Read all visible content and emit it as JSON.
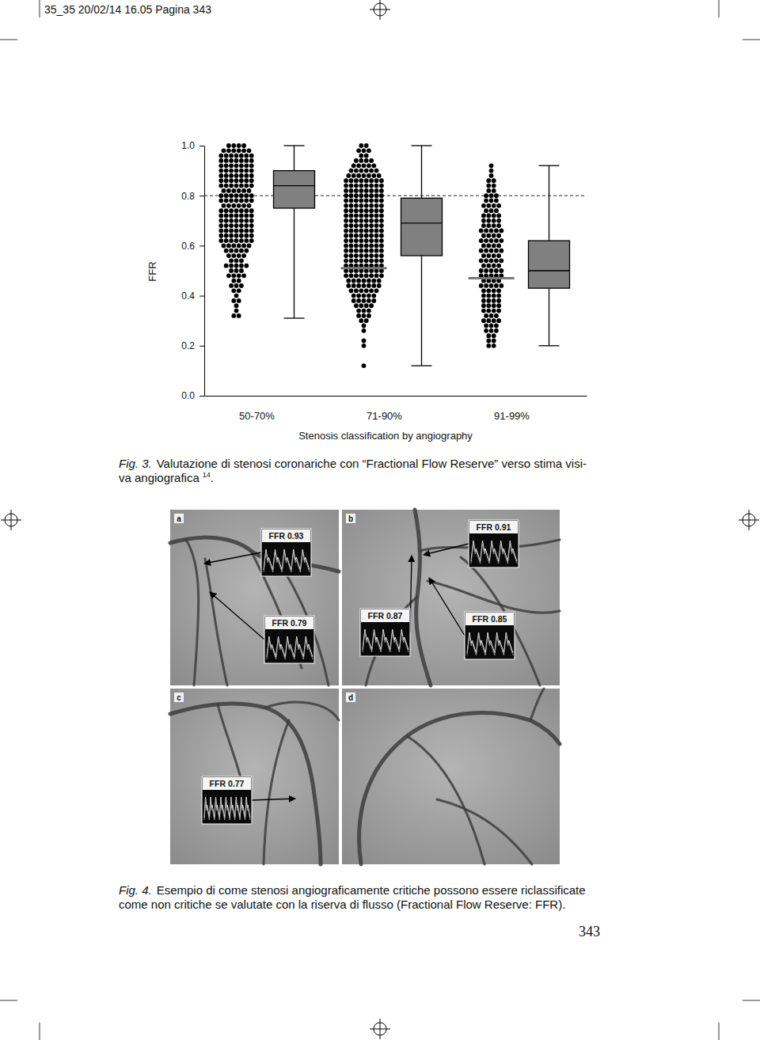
{
  "header": "35_35 20/02/14 16.05 Pagina 343",
  "chart_data": {
    "type": "box",
    "y_label": "FFR",
    "x_label": "Stenosis classification by angiography",
    "categories": [
      "50-70%",
      "71-90%",
      "91-99%"
    ],
    "ylim": [
      0,
      1
    ],
    "yticks": [
      {
        "value": 0,
        "label": "0.0"
      },
      0.2,
      0.4,
      0.6,
      0.8,
      {
        "value": 1,
        "label": "1.0"
      }
    ],
    "points": [
      [
        1,
        1,
        1,
        1,
        0.98,
        0.98,
        0.98,
        0.98,
        0.98,
        0.98,
        0.96,
        0.96,
        0.96,
        0.96,
        0.96,
        0.96,
        0.96,
        0.94,
        0.94,
        0.94,
        0.94,
        0.94,
        0.94,
        0.94,
        0.92,
        0.92,
        0.92,
        0.92,
        0.92,
        0.92,
        0.92,
        0.9,
        0.9,
        0.9,
        0.9,
        0.9,
        0.9,
        0.9,
        0.88,
        0.88,
        0.88,
        0.88,
        0.88,
        0.88,
        0.88,
        0.86,
        0.86,
        0.86,
        0.86,
        0.86,
        0.86,
        0.86,
        0.84,
        0.84,
        0.84,
        0.84,
        0.84,
        0.84,
        0.84,
        0.82,
        0.82,
        0.82,
        0.82,
        0.82,
        0.82,
        0.8,
        0.8,
        0.8,
        0.8,
        0.8,
        0.8,
        0.8,
        0.78,
        0.78,
        0.78,
        0.78,
        0.78,
        0.78,
        0.78,
        0.76,
        0.76,
        0.76,
        0.76,
        0.76,
        0.76,
        0.74,
        0.74,
        0.74,
        0.74,
        0.74,
        0.74,
        0.74,
        0.72,
        0.72,
        0.72,
        0.72,
        0.72,
        0.72,
        0.72,
        0.7,
        0.7,
        0.7,
        0.7,
        0.7,
        0.7,
        0.7,
        0.68,
        0.68,
        0.68,
        0.68,
        0.68,
        0.68,
        0.68,
        0.66,
        0.66,
        0.66,
        0.66,
        0.66,
        0.66,
        0.66,
        0.64,
        0.64,
        0.64,
        0.64,
        0.64,
        0.64,
        0.64,
        0.62,
        0.62,
        0.62,
        0.62,
        0.62,
        0.62,
        0.62,
        0.6,
        0.6,
        0.6,
        0.6,
        0.6,
        0.6,
        0.58,
        0.58,
        0.58,
        0.58,
        0.58,
        0.56,
        0.56,
        0.56,
        0.56,
        0.54,
        0.54,
        0.54,
        0.52,
        0.52,
        0.52,
        0.52,
        0.52,
        0.5,
        0.5,
        0.5,
        0.48,
        0.48,
        0.48,
        0.48,
        0.46,
        0.46,
        0.44,
        0.44,
        0.44,
        0.42,
        0.42,
        0.4,
        0.38,
        0.38,
        0.36,
        0.34,
        0.32,
        0.32
      ],
      [
        1,
        1,
        0.98,
        0.98,
        0.98,
        0.96,
        0.96,
        0.94,
        0.94,
        0.94,
        0.94,
        0.92,
        0.92,
        0.92,
        0.92,
        0.92,
        0.9,
        0.9,
        0.9,
        0.9,
        0.9,
        0.9,
        0.88,
        0.88,
        0.88,
        0.88,
        0.88,
        0.88,
        0.88,
        0.86,
        0.86,
        0.86,
        0.86,
        0.86,
        0.86,
        0.86,
        0.86,
        0.84,
        0.84,
        0.84,
        0.84,
        0.84,
        0.84,
        0.84,
        0.84,
        0.82,
        0.82,
        0.82,
        0.82,
        0.82,
        0.82,
        0.82,
        0.82,
        0.8,
        0.8,
        0.8,
        0.8,
        0.8,
        0.8,
        0.8,
        0.8,
        0.78,
        0.78,
        0.78,
        0.78,
        0.78,
        0.78,
        0.78,
        0.78,
        0.76,
        0.76,
        0.76,
        0.76,
        0.76,
        0.76,
        0.76,
        0.76,
        0.74,
        0.74,
        0.74,
        0.74,
        0.74,
        0.74,
        0.74,
        0.74,
        0.72,
        0.72,
        0.72,
        0.72,
        0.72,
        0.72,
        0.72,
        0.72,
        0.7,
        0.7,
        0.7,
        0.7,
        0.7,
        0.7,
        0.7,
        0.7,
        0.68,
        0.68,
        0.68,
        0.68,
        0.68,
        0.68,
        0.68,
        0.68,
        0.66,
        0.66,
        0.66,
        0.66,
        0.66,
        0.66,
        0.66,
        0.66,
        0.64,
        0.64,
        0.64,
        0.64,
        0.64,
        0.64,
        0.64,
        0.64,
        0.62,
        0.62,
        0.62,
        0.62,
        0.62,
        0.62,
        0.62,
        0.62,
        0.6,
        0.6,
        0.6,
        0.6,
        0.6,
        0.6,
        0.6,
        0.6,
        0.58,
        0.58,
        0.58,
        0.58,
        0.58,
        0.58,
        0.58,
        0.58,
        0.56,
        0.56,
        0.56,
        0.56,
        0.56,
        0.56,
        0.56,
        0.56,
        0.54,
        0.54,
        0.54,
        0.54,
        0.54,
        0.54,
        0.54,
        0.54,
        0.52,
        0.52,
        0.52,
        0.52,
        0.52,
        0.52,
        0.52,
        0.52,
        0.5,
        0.5,
        0.5,
        0.5,
        0.5,
        0.5,
        0.5,
        0.5,
        0.48,
        0.48,
        0.48,
        0.48,
        0.48,
        0.48,
        0.48,
        0.48,
        0.46,
        0.46,
        0.46,
        0.46,
        0.46,
        0.46,
        0.46,
        0.44,
        0.44,
        0.44,
        0.44,
        0.44,
        0.44,
        0.44,
        0.42,
        0.42,
        0.42,
        0.42,
        0.42,
        0.42,
        0.4,
        0.4,
        0.4,
        0.4,
        0.4,
        0.38,
        0.38,
        0.38,
        0.38,
        0.38,
        0.36,
        0.36,
        0.36,
        0.36,
        0.34,
        0.34,
        0.34,
        0.32,
        0.32,
        0.32,
        0.3,
        0.3,
        0.28,
        0.26,
        0.22,
        0.2,
        0.12
      ],
      [
        0.92,
        0.9,
        0.88,
        0.86,
        0.86,
        0.84,
        0.84,
        0.82,
        0.82,
        0.8,
        0.8,
        0.8,
        0.78,
        0.78,
        0.78,
        0.76,
        0.76,
        0.76,
        0.76,
        0.74,
        0.74,
        0.74,
        0.72,
        0.72,
        0.72,
        0.72,
        0.7,
        0.7,
        0.7,
        0.7,
        0.68,
        0.68,
        0.68,
        0.68,
        0.66,
        0.66,
        0.66,
        0.66,
        0.66,
        0.64,
        0.64,
        0.64,
        0.64,
        0.62,
        0.62,
        0.62,
        0.62,
        0.62,
        0.6,
        0.6,
        0.6,
        0.6,
        0.58,
        0.58,
        0.58,
        0.58,
        0.58,
        0.56,
        0.56,
        0.56,
        0.56,
        0.54,
        0.54,
        0.54,
        0.54,
        0.54,
        0.52,
        0.52,
        0.52,
        0.52,
        0.5,
        0.5,
        0.5,
        0.5,
        0.5,
        0.48,
        0.48,
        0.48,
        0.48,
        0.48,
        0.46,
        0.46,
        0.46,
        0.46,
        0.44,
        0.44,
        0.44,
        0.44,
        0.44,
        0.42,
        0.42,
        0.42,
        0.42,
        0.4,
        0.4,
        0.4,
        0.4,
        0.38,
        0.38,
        0.38,
        0.38,
        0.36,
        0.36,
        0.36,
        0.36,
        0.34,
        0.34,
        0.34,
        0.34,
        0.32,
        0.32,
        0.32,
        0.3,
        0.3,
        0.3,
        0.3,
        0.28,
        0.28,
        0.28,
        0.26,
        0.26,
        0.26,
        0.24,
        0.24,
        0.22,
        0.22,
        0.2,
        0.2
      ]
    ],
    "whisker_low": [
      0.31,
      0.12,
      0.2
    ],
    "q1": [
      0.75,
      0.56,
      0.43
    ],
    "median": [
      0.84,
      0.69,
      0.5
    ],
    "q3": [
      0.9,
      0.79,
      0.62
    ],
    "whisker_high": [
      1,
      1,
      0.92
    ],
    "mean": [
      null,
      0.51,
      0.47
    ],
    "reference_line": 0.8,
    "color": "#808080"
  },
  "figure3_caption": {
    "label": "Fig. 3.",
    "lines": [
      "Valutazione di stenosi coronariche con “Fractional Flow Reserve” verso stima visi-",
      "va angiografica"
    ],
    "ref": "14",
    "end": "."
  },
  "figure4": {
    "panels": [
      {
        "letter": "a",
        "labels": [
          "FFR 0.93",
          "FFR 0.79"
        ]
      },
      {
        "letter": "b",
        "labels": [
          "FFR 0.91",
          "FFR 0.87",
          "FFR 0.85"
        ]
      },
      {
        "letter": "c",
        "labels": [
          "FFR 0.77"
        ]
      },
      {
        "letter": "d",
        "labels": []
      }
    ]
  },
  "figure4_caption": {
    "label": "Fig. 4.",
    "lines": [
      "Esempio di come stenosi angiograficamente critiche possono essere riclassificate",
      "come non critiche se valutate con la riserva di flusso (Fractional Flow Reserve: FFR)."
    ]
  },
  "page_number": "343"
}
